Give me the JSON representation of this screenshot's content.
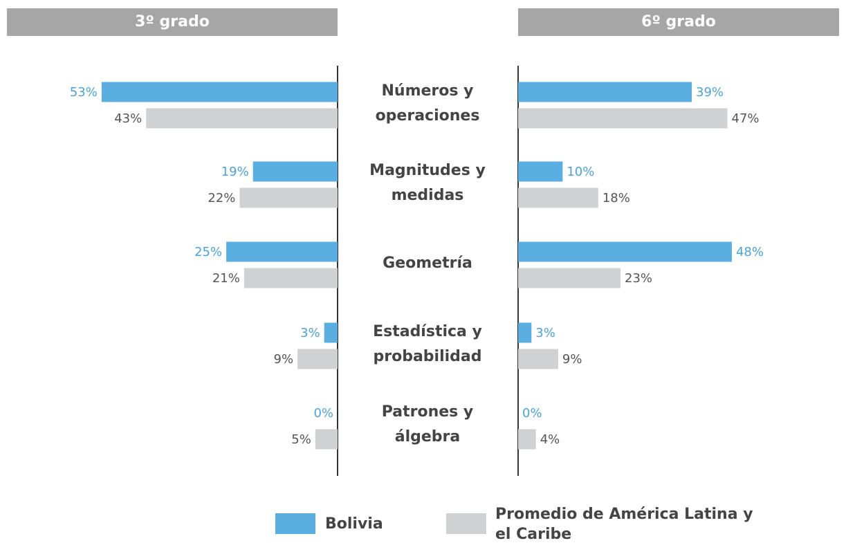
{
  "chart_data": [
    {
      "type": "bar",
      "title": "3º grado",
      "categories": [
        "Números y operaciones",
        "Magnitudes y medidas",
        "Geometría",
        "Estadística y probabilidad",
        "Patrones y álgebra"
      ],
      "xlim": [
        0,
        55
      ],
      "series": [
        {
          "name": "Bolivia",
          "color": "#5aafe0",
          "values": [
            53,
            19,
            25,
            3,
            0
          ],
          "value_labels": [
            "53%",
            "19%",
            "25%",
            "3%",
            "0%"
          ]
        },
        {
          "name": "Promedio de América Latina y el Caribe",
          "color": "#d0d1d3",
          "values": [
            43,
            22,
            21,
            9,
            5
          ],
          "value_labels": [
            "43%",
            "22%",
            "21%",
            "9%",
            "5%"
          ]
        }
      ]
    },
    {
      "type": "bar",
      "title": "6º grado",
      "xlim": [
        0,
        55
      ],
      "series": [
        {
          "color": "#5aafe0",
          "values": [
            39,
            10,
            48,
            3,
            0
          ],
          "value_labels": [
            "39%",
            "10%",
            "48%",
            "3%",
            "0%"
          ]
        },
        {
          "color": "#d0d1d3",
          "values": [
            47,
            18,
            23,
            9,
            4
          ],
          "value_labels": [
            "47%",
            "18%",
            "23%",
            "9%",
            "4%"
          ]
        }
      ]
    }
  ]
}
